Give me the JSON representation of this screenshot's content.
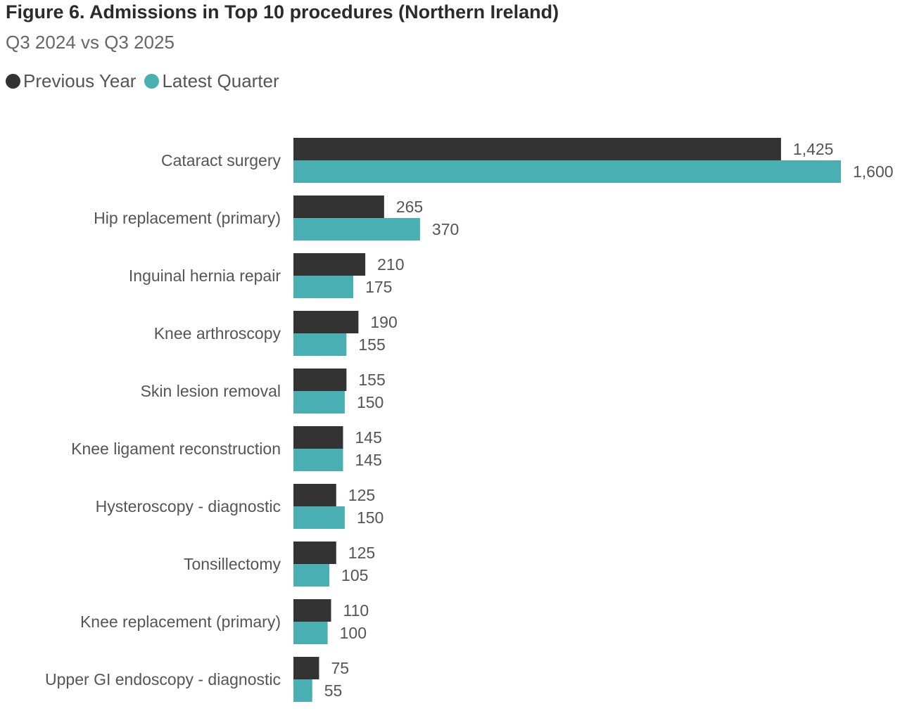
{
  "chart_data": {
    "type": "bar",
    "orientation": "horizontal",
    "title": "Figure 6. Admissions in Top 10 procedures (Northern Ireland)",
    "subtitle": "Q3 2024 vs Q3 2025",
    "legend_placement": "top-left",
    "grid": false,
    "xlim": [
      0,
      1600
    ],
    "categories": [
      "Cataract surgery",
      "Hip replacement (primary)",
      "Inguinal hernia repair",
      "Knee arthroscopy",
      "Skin lesion removal",
      "Knee ligament reconstruction",
      "Hysteroscopy - diagnostic",
      "Tonsillectomy",
      "Knee replacement (primary)",
      "Upper GI endoscopy - diagnostic"
    ],
    "series": [
      {
        "name": "Previous Year",
        "color": "#333333",
        "values": [
          1425,
          265,
          210,
          190,
          155,
          145,
          125,
          125,
          110,
          75
        ],
        "labels": [
          "1,425",
          "265",
          "210",
          "190",
          "155",
          "145",
          "125",
          "125",
          "110",
          "75"
        ]
      },
      {
        "name": "Latest Quarter",
        "color": "#4aafb3",
        "values": [
          1600,
          370,
          175,
          155,
          150,
          145,
          150,
          105,
          100,
          55
        ],
        "labels": [
          "1,600",
          "370",
          "175",
          "155",
          "150",
          "145",
          "150",
          "105",
          "100",
          "55"
        ]
      }
    ]
  }
}
